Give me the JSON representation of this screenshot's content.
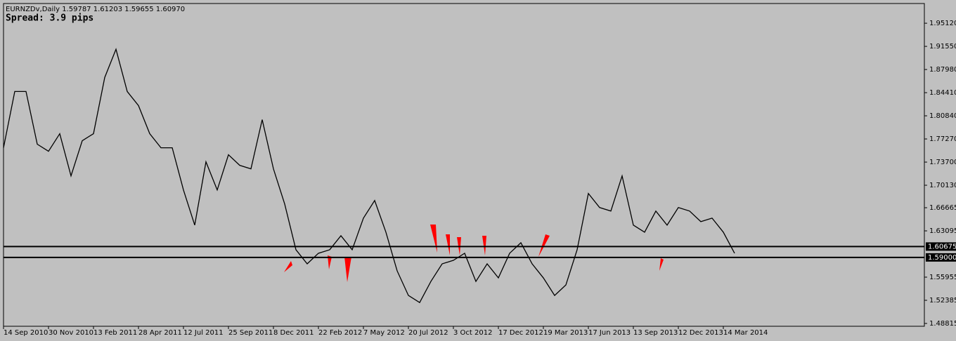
{
  "chart_data": {
    "type": "line",
    "title": "EURNZDv,Daily  1.59787 1.61203 1.59655 1.60970",
    "subtitle": "Spread: 3.9 pips",
    "background": "#c0c0c0",
    "grid": false,
    "categories": [
      "14 Sep 2010",
      null,
      null,
      null,
      "30 Nov 2010",
      null,
      null,
      null,
      "13 Feb 2011",
      null,
      null,
      null,
      "28 Apr 2011",
      null,
      null,
      null,
      "12 Jul 2011",
      null,
      null,
      null,
      "25 Sep 2011",
      null,
      null,
      null,
      "8 Dec 2011",
      null,
      null,
      null,
      "22 Feb 2012",
      null,
      null,
      null,
      "7 May 2012",
      null,
      null,
      null,
      "20 Jul 2012",
      null,
      null,
      null,
      "3 Oct 2012",
      null,
      null,
      null,
      "17 Dec 2012",
      null,
      null,
      null,
      "19 Mar 2013",
      null,
      null,
      null,
      "17 Jun 2013",
      null,
      null,
      null,
      "13 Sep 2013",
      null,
      null,
      null,
      "12 Dec 2013",
      null,
      null,
      null,
      "14 Mar 2014",
      null
    ],
    "series": [
      {
        "name": "EURNZDv",
        "color": "#000000",
        "values": [
          1.7591,
          1.8459,
          1.8459,
          1.7646,
          1.7537,
          1.7808,
          1.7157,
          1.77,
          1.7808,
          1.8676,
          1.9111,
          1.8459,
          1.8242,
          1.7808,
          1.7591,
          1.7591,
          1.694,
          1.6398,
          1.7374,
          1.694,
          1.7483,
          1.732,
          1.7266,
          1.8025,
          1.7266,
          1.6723,
          1.6018,
          1.5801,
          1.5964,
          1.6018,
          1.6235,
          1.6018,
          1.6506,
          1.6778,
          1.6289,
          1.5692,
          1.5313,
          1.5204,
          1.553,
          1.5801,
          1.5855,
          1.5964,
          1.553,
          1.5801,
          1.5584,
          1.5964,
          1.6126,
          1.5801,
          1.5584,
          1.5313,
          1.5475,
          1.6018,
          1.6886,
          1.6669,
          1.6615,
          1.7157,
          1.6398,
          1.6289,
          1.6615,
          1.6398,
          1.6669,
          1.6615,
          1.6452,
          1.6506,
          1.6289,
          1.5964
        ]
      }
    ],
    "ylim": [
      1.4838,
      1.9816
    ],
    "yticks": [
      {
        "value": 1.9512,
        "label": "1.95120"
      },
      {
        "value": 1.9155,
        "label": "1.91550"
      },
      {
        "value": 1.8798,
        "label": "1.87980"
      },
      {
        "value": 1.8441,
        "label": "1.84410"
      },
      {
        "value": 1.8084,
        "label": "1.80840"
      },
      {
        "value": 1.7727,
        "label": "1.77270"
      },
      {
        "value": 1.737,
        "label": "1.73700"
      },
      {
        "value": 1.7013,
        "label": "1.70130"
      },
      {
        "value": 1.66665,
        "label": "1.66665"
      },
      {
        "value": 1.63095,
        "label": "1.63095"
      },
      {
        "value": 1.55955,
        "label": "1.55955"
      },
      {
        "value": 1.52385,
        "label": "1.52385"
      },
      {
        "value": 1.48815,
        "label": "1.48815"
      }
    ],
    "hlines": [
      {
        "value": 1.60675,
        "label": "1.60675"
      },
      {
        "value": 1.59,
        "label": "1.59000"
      }
    ]
  }
}
